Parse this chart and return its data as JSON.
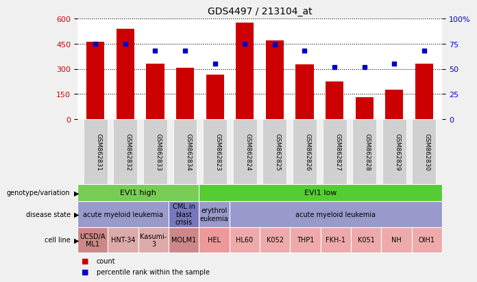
{
  "title": "GDS4497 / 213104_at",
  "samples": [
    "GSM862831",
    "GSM862832",
    "GSM862833",
    "GSM862834",
    "GSM862823",
    "GSM862824",
    "GSM862825",
    "GSM862826",
    "GSM862827",
    "GSM862828",
    "GSM862829",
    "GSM862830"
  ],
  "bar_values": [
    460,
    540,
    330,
    305,
    265,
    575,
    470,
    325,
    225,
    130,
    175,
    330
  ],
  "dot_values": [
    75,
    75,
    68,
    68,
    55,
    75,
    74,
    68,
    52,
    52,
    55,
    68
  ],
  "ylim_left": [
    0,
    600
  ],
  "ylim_right": [
    0,
    100
  ],
  "yticks_left": [
    0,
    150,
    300,
    450,
    600
  ],
  "yticks_right": [
    0,
    25,
    50,
    75,
    100
  ],
  "bar_color": "#cc0000",
  "dot_color": "#0000cc",
  "fig_bg": "#f0f0f0",
  "plot_bg": "#ffffff",
  "xtick_bg": "#d0d0d0",
  "genotype_row": {
    "label": "genotype/variation",
    "groups": [
      {
        "text": "EVI1 high",
        "start": 0,
        "end": 4,
        "color": "#77cc55"
      },
      {
        "text": "EVI1 low",
        "start": 4,
        "end": 12,
        "color": "#55cc33"
      }
    ]
  },
  "disease_row": {
    "label": "disease state",
    "groups": [
      {
        "text": "acute myeloid leukemia",
        "start": 0,
        "end": 3,
        "color": "#9999cc"
      },
      {
        "text": "CML in\nblast\ncrisis",
        "start": 3,
        "end": 4,
        "color": "#7777bb"
      },
      {
        "text": "erythrol\neukemia",
        "start": 4,
        "end": 5,
        "color": "#9999cc"
      },
      {
        "text": "acute myeloid leukemia",
        "start": 5,
        "end": 12,
        "color": "#9999cc"
      }
    ]
  },
  "cell_row": {
    "label": "cell line",
    "groups": [
      {
        "text": "UCSD/A\nML1",
        "start": 0,
        "end": 1,
        "color": "#cc8888"
      },
      {
        "text": "HNT-34",
        "start": 1,
        "end": 2,
        "color": "#ddaaaa"
      },
      {
        "text": "Kasumi-\n3",
        "start": 2,
        "end": 3,
        "color": "#ddaaaa"
      },
      {
        "text": "MOLM1",
        "start": 3,
        "end": 4,
        "color": "#cc8888"
      },
      {
        "text": "HEL",
        "start": 4,
        "end": 5,
        "color": "#ee9999"
      },
      {
        "text": "HL60",
        "start": 5,
        "end": 6,
        "color": "#eeaaaa"
      },
      {
        "text": "K052",
        "start": 6,
        "end": 7,
        "color": "#eeaaaa"
      },
      {
        "text": "THP1",
        "start": 7,
        "end": 8,
        "color": "#eeaaaa"
      },
      {
        "text": "FKH-1",
        "start": 8,
        "end": 9,
        "color": "#eeaaaa"
      },
      {
        "text": "K051",
        "start": 9,
        "end": 10,
        "color": "#eeaaaa"
      },
      {
        "text": "NH",
        "start": 10,
        "end": 11,
        "color": "#eeaaaa"
      },
      {
        "text": "OIH1",
        "start": 11,
        "end": 12,
        "color": "#eeaaaa"
      }
    ]
  },
  "legend_items": [
    {
      "color": "#cc0000",
      "label": "count"
    },
    {
      "color": "#0000cc",
      "label": "percentile rank within the sample"
    }
  ]
}
